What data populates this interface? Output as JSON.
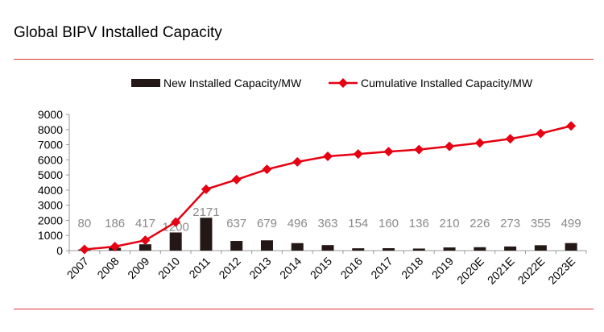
{
  "header": {
    "title": "Global BIPV Installed Capacity"
  },
  "chart_data": {
    "type": "bar+line",
    "title": "Global BIPV Installed Capacity",
    "categories": [
      "2007",
      "2008",
      "2009",
      "2010",
      "2011",
      "2012",
      "2013",
      "2014",
      "2015",
      "2016",
      "2017",
      "2018",
      "2019",
      "2020E",
      "2021E",
      "2022E",
      "2023E"
    ],
    "series": [
      {
        "name": "New Installed Capacity/MW",
        "type": "bar",
        "color": "#231815",
        "values": [
          80,
          186,
          417,
          1200,
          2171,
          637,
          679,
          496,
          363,
          154,
          160,
          136,
          210,
          226,
          273,
          355,
          499
        ]
      },
      {
        "name": "Cumulative Installed Capacity/MW",
        "type": "line",
        "color": "#e60012",
        "values": [
          80,
          266,
          683,
          1883,
          4054,
          4691,
          5370,
          5866,
          6229,
          6383,
          6543,
          6679,
          6889,
          7115,
          7388,
          7743,
          8242
        ]
      }
    ],
    "ylim": [
      0,
      9000
    ],
    "yticks": [
      0,
      1000,
      2000,
      3000,
      4000,
      5000,
      6000,
      7000,
      8000,
      9000
    ],
    "legend": "top",
    "grid": false,
    "data_label_color": "#898989"
  }
}
